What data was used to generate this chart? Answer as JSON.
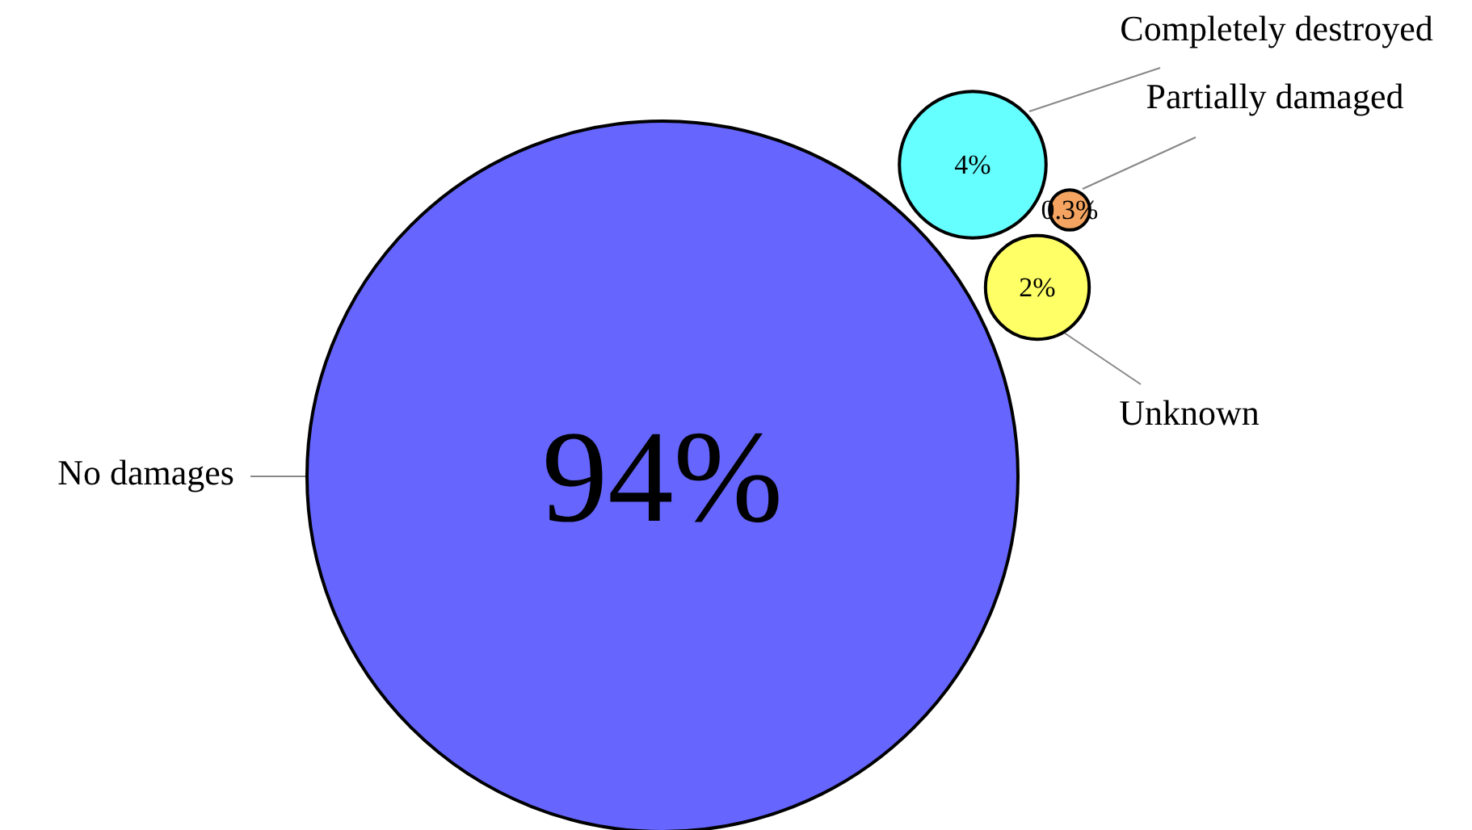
{
  "chart_data": {
    "type": "other",
    "categories": [
      "No damages",
      "Completely destroyed",
      "Partially damaged",
      "Unknown"
    ],
    "values": [
      94,
      4,
      0.3,
      2
    ],
    "colors": [
      "#6666ff",
      "#66ffff",
      "#f4a460",
      "#ffff66"
    ],
    "value_labels": [
      "94%",
      "4%",
      "0.3%",
      "2%"
    ]
  }
}
